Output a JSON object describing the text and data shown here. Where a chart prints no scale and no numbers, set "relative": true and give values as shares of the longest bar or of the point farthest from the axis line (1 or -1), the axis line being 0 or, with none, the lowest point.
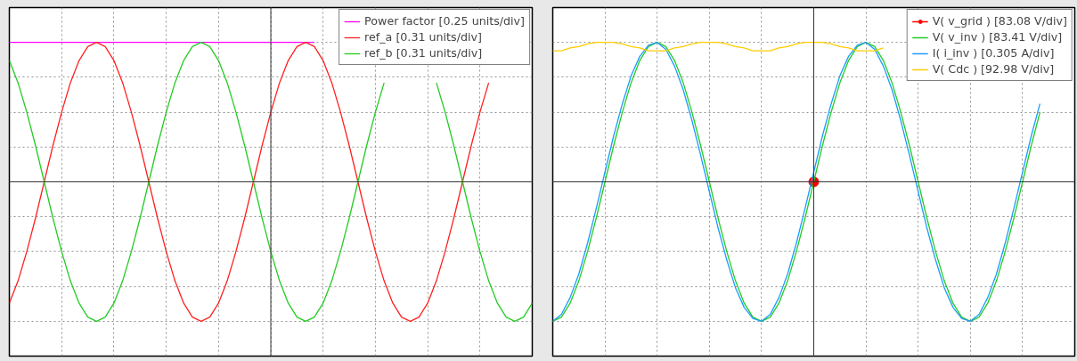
{
  "chart_data": [
    {
      "type": "line",
      "relative": true,
      "grid": true,
      "legend": "top right",
      "tick_labels": false,
      "categories": [
        null,
        null,
        null,
        null,
        null,
        null,
        null,
        null,
        null,
        null,
        null,
        null,
        null,
        null,
        null,
        null,
        null,
        null,
        null,
        null,
        null,
        null,
        null,
        null,
        null,
        null,
        null,
        null,
        null,
        null,
        null,
        null,
        null,
        null,
        null,
        null,
        null,
        null,
        null,
        null,
        null,
        null,
        null,
        null,
        null,
        null,
        null,
        null,
        null,
        null,
        null,
        null,
        null,
        null,
        null,
        null,
        null,
        null,
        null,
        null,
        null
      ],
      "series": [
        {
          "name": "Power factor [0.25 units/div]",
          "color": "#ff00ff",
          "values": [
            1,
            1,
            1,
            1,
            1,
            1,
            1,
            1,
            1,
            1,
            1,
            1,
            1,
            1,
            1,
            1,
            1,
            1,
            1,
            1,
            1,
            1,
            1,
            1,
            1,
            1,
            1,
            1,
            1,
            1,
            1,
            1,
            1,
            1,
            1,
            1,
            null,
            null,
            null,
            null,
            null,
            null,
            null,
            null,
            null,
            null,
            null,
            null,
            null,
            null,
            null,
            null,
            null,
            null,
            null,
            null,
            null,
            null,
            null,
            null,
            null
          ]
        },
        {
          "name": "ref_a [0.31 units/div]",
          "color": "#ff2020",
          "values": [
            -0.87,
            -0.71,
            -0.5,
            -0.26,
            0,
            0.26,
            0.5,
            0.71,
            0.87,
            0.97,
            1,
            0.97,
            0.87,
            0.71,
            0.5,
            0.26,
            0,
            -0.26,
            -0.5,
            -0.71,
            -0.87,
            -0.97,
            -1,
            -0.97,
            -0.87,
            -0.71,
            -0.5,
            -0.26,
            0,
            0.26,
            0.5,
            0.71,
            0.87,
            0.97,
            1,
            0.97,
            0.87,
            0.71,
            0.5,
            0.26,
            0,
            -0.26,
            -0.5,
            -0.71,
            -0.87,
            -0.97,
            -1,
            -0.97,
            -0.87,
            -0.71,
            -0.5,
            -0.26,
            0,
            0.26,
            0.5,
            0.71,
            null,
            null,
            null,
            null,
            null
          ]
        },
        {
          "name": "ref_b [0.31 units/div]",
          "color": "#22cc22",
          "values": [
            0.87,
            0.71,
            0.5,
            0.26,
            0,
            -0.26,
            -0.5,
            -0.71,
            -0.87,
            -0.97,
            -1,
            -0.97,
            -0.87,
            -0.71,
            -0.5,
            -0.26,
            0,
            0.26,
            0.5,
            0.71,
            0.87,
            0.97,
            1,
            0.97,
            0.87,
            0.71,
            0.5,
            0.26,
            0,
            -0.26,
            -0.5,
            -0.71,
            -0.87,
            -0.97,
            -1,
            -0.97,
            -0.87,
            -0.71,
            -0.5,
            -0.26,
            0,
            0.26,
            0.5,
            0.71,
            null,
            null,
            null,
            null,
            null,
            0.71,
            0.5,
            0.26,
            0,
            -0.26,
            -0.5,
            -0.71,
            -0.87,
            -0.97,
            -1,
            -0.97,
            -0.87
          ]
        }
      ]
    },
    {
      "type": "line",
      "relative": true,
      "grid": true,
      "legend": "top right",
      "tick_labels": false,
      "categories": [
        null,
        null,
        null,
        null,
        null,
        null,
        null,
        null,
        null,
        null,
        null,
        null,
        null,
        null,
        null,
        null,
        null,
        null,
        null,
        null,
        null,
        null,
        null,
        null,
        null,
        null,
        null,
        null,
        null,
        null,
        null,
        null,
        null,
        null,
        null,
        null,
        null,
        null,
        null,
        null,
        null,
        null,
        null,
        null,
        null,
        null,
        null,
        null,
        null,
        null,
        null,
        null,
        null,
        null,
        null,
        null,
        null,
        null,
        null,
        null,
        null
      ],
      "series": [
        {
          "name": "V( v_grid ) [83.08 V/div]",
          "color": "#ff0000",
          "marker": "circle",
          "values": [
            null,
            null,
            null,
            null,
            null,
            null,
            null,
            null,
            null,
            null,
            null,
            null,
            null,
            null,
            null,
            null,
            null,
            null,
            null,
            null,
            null,
            null,
            null,
            null,
            null,
            null,
            null,
            null,
            null,
            null,
            0,
            null,
            null,
            null,
            null,
            null,
            null,
            null,
            null,
            null,
            null,
            null,
            null,
            null,
            null,
            null,
            null,
            null,
            null,
            null,
            null,
            null,
            null,
            null,
            null,
            null,
            null,
            null,
            null,
            null,
            null
          ]
        },
        {
          "name": "V( v_inv ) [83.41 V/div]",
          "color": "#22cc22",
          "values": [
            -1,
            -0.97,
            -0.87,
            -0.71,
            -0.5,
            -0.26,
            0,
            0.26,
            0.5,
            0.71,
            0.87,
            0.97,
            1,
            0.97,
            0.87,
            0.71,
            0.5,
            0.26,
            0,
            -0.26,
            -0.5,
            -0.71,
            -0.87,
            -0.97,
            -1,
            -0.97,
            -0.87,
            -0.71,
            -0.5,
            -0.26,
            0,
            0.26,
            0.5,
            0.71,
            0.87,
            0.97,
            1,
            0.97,
            0.87,
            0.71,
            0.5,
            0.26,
            0,
            -0.26,
            -0.5,
            -0.71,
            -0.87,
            -0.97,
            -1,
            -0.97,
            -0.87,
            -0.71,
            -0.5,
            -0.26,
            0,
            0.26,
            0.5,
            null,
            null,
            null,
            null
          ]
        },
        {
          "name": "I( i_inv ) [0.305 A/div]",
          "color": "#1e9bff",
          "values": [
            -1,
            -0.95,
            -0.83,
            -0.66,
            -0.44,
            -0.19,
            0.07,
            0.33,
            0.56,
            0.76,
            0.9,
            0.98,
            1,
            0.95,
            0.83,
            0.66,
            0.44,
            0.19,
            -0.07,
            -0.33,
            -0.56,
            -0.76,
            -0.9,
            -0.98,
            -1,
            -0.95,
            -0.83,
            -0.66,
            -0.44,
            -0.19,
            0.07,
            0.33,
            0.56,
            0.76,
            0.9,
            0.98,
            1,
            0.95,
            0.83,
            0.66,
            0.44,
            0.19,
            -0.07,
            -0.33,
            -0.56,
            -0.76,
            -0.9,
            -0.98,
            -1,
            -0.95,
            -0.83,
            -0.66,
            -0.44,
            -0.19,
            0.07,
            0.33,
            0.56,
            null,
            null,
            null,
            null
          ]
        },
        {
          "name": "V( Cdc ) [92.98 V/div]",
          "color": "#ffcc00",
          "values": [
            0.94,
            0.94,
            0.96,
            0.97,
            0.99,
            1,
            1,
            1,
            0.99,
            0.97,
            0.96,
            0.94,
            0.94,
            0.94,
            0.96,
            0.97,
            0.99,
            1,
            1,
            1,
            0.99,
            0.97,
            0.96,
            0.94,
            0.94,
            0.94,
            0.96,
            0.97,
            0.99,
            1,
            1,
            1,
            0.99,
            0.97,
            0.96,
            0.94,
            0.94,
            0.94,
            0.96,
            null,
            null,
            null,
            null,
            null,
            null,
            null,
            null,
            null,
            null,
            null,
            null,
            null,
            null,
            null,
            null,
            null,
            null,
            null,
            null,
            null,
            null
          ]
        }
      ]
    }
  ]
}
